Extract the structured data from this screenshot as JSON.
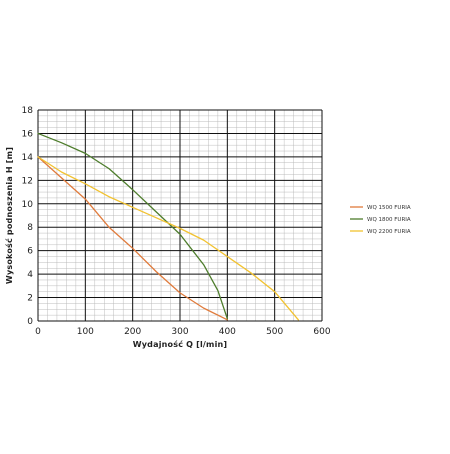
{
  "chart_data": {
    "type": "line",
    "xlabel": "Wydajność Q [l/min]",
    "ylabel": "Wysokość podnoszenia H [m]",
    "xlim": [
      0,
      600
    ],
    "ylim": [
      0,
      18
    ],
    "x_ticks": [
      0,
      100,
      200,
      300,
      400,
      500,
      600
    ],
    "y_ticks": [
      0,
      2,
      4,
      6,
      8,
      10,
      12,
      14,
      16,
      18
    ],
    "x_tick_labels": [
      "0",
      "100",
      "200",
      "300",
      "400",
      "500",
      "600"
    ],
    "y_tick_labels": [
      "0",
      "2",
      "4",
      "6",
      "8",
      "10",
      "12",
      "14",
      "16",
      "18"
    ],
    "grid": true,
    "minor_grid": true,
    "legend_position": "right",
    "series": [
      {
        "name": "WQ 1500 FURIA",
        "color": "#e07b3c",
        "points": [
          [
            0,
            14
          ],
          [
            50,
            12.2
          ],
          [
            100,
            10.4
          ],
          [
            150,
            8
          ],
          [
            200,
            6.2
          ],
          [
            250,
            4.2
          ],
          [
            300,
            2.4
          ],
          [
            350,
            1.1
          ],
          [
            400,
            0.1
          ]
        ]
      },
      {
        "name": "WQ 1800 FURIA",
        "color": "#4e7d2c",
        "points": [
          [
            0,
            16
          ],
          [
            50,
            15.2
          ],
          [
            100,
            14.3
          ],
          [
            150,
            13
          ],
          [
            200,
            11.2
          ],
          [
            250,
            9.3
          ],
          [
            300,
            7.4
          ],
          [
            350,
            4.8
          ],
          [
            380,
            2.6
          ],
          [
            400,
            0.2
          ]
        ]
      },
      {
        "name": "WQ 2200 FURIA",
        "color": "#f2c230",
        "points": [
          [
            0,
            14
          ],
          [
            50,
            12.7
          ],
          [
            100,
            11.7
          ],
          [
            150,
            10.6
          ],
          [
            200,
            9.7
          ],
          [
            250,
            8.8
          ],
          [
            300,
            7.9
          ],
          [
            350,
            6.9
          ],
          [
            400,
            5.5
          ],
          [
            450,
            4.1
          ],
          [
            500,
            2.5
          ],
          [
            550,
            0.1
          ]
        ]
      }
    ]
  }
}
